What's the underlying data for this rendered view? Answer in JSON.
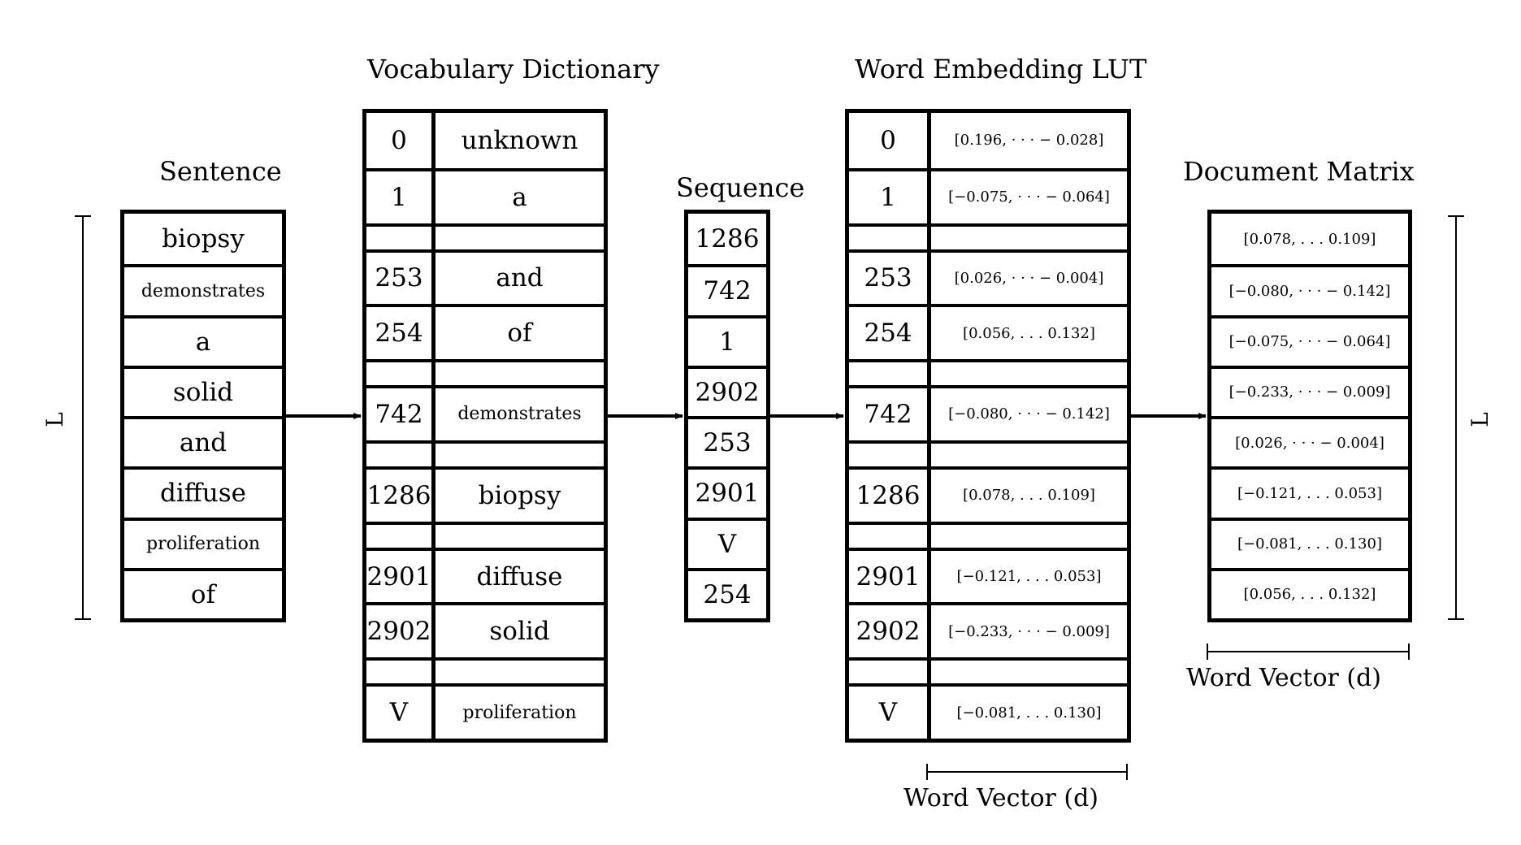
{
  "titles": {
    "sentence": "Sentence",
    "vocab": "Vocabulary Dictionary",
    "sequence": "Sequence",
    "lut": "Word Embedding LUT",
    "document": "Document Matrix"
  },
  "sentence_words": [
    "biopsy",
    "demonstrates",
    "a",
    "solid",
    "and",
    "diffuse",
    "proliferation",
    "of"
  ],
  "vocab": [
    {
      "id": "0",
      "word": "unknown"
    },
    {
      "id": "1",
      "word": "a"
    },
    {
      "id": "",
      "word": ""
    },
    {
      "id": "253",
      "word": "and"
    },
    {
      "id": "254",
      "word": "of"
    },
    {
      "id": "",
      "word": ""
    },
    {
      "id": "742",
      "word": "demonstrates"
    },
    {
      "id": "",
      "word": ""
    },
    {
      "id": "1286",
      "word": "biopsy"
    },
    {
      "id": "",
      "word": ""
    },
    {
      "id": "2901",
      "word": "diffuse"
    },
    {
      "id": "2902",
      "word": "solid"
    },
    {
      "id": "",
      "word": ""
    },
    {
      "id": "V",
      "word": "proliferation"
    }
  ],
  "sequence": [
    "1286",
    "742",
    "1",
    "2902",
    "253",
    "2901",
    "V",
    "254"
  ],
  "lut": [
    {
      "id": "0",
      "vec": "[0.196, · · · − 0.028]"
    },
    {
      "id": "1",
      "vec": "[−0.075, · · · − 0.064]"
    },
    {
      "id": "",
      "vec": ""
    },
    {
      "id": "253",
      "vec": "[0.026, · · · − 0.004]"
    },
    {
      "id": "254",
      "vec": "[0.056, . . . 0.132]"
    },
    {
      "id": "",
      "vec": ""
    },
    {
      "id": "742",
      "vec": "[−0.080, · · · − 0.142]"
    },
    {
      "id": "",
      "vec": ""
    },
    {
      "id": "1286",
      "vec": "[0.078, . . . 0.109]"
    },
    {
      "id": "",
      "vec": ""
    },
    {
      "id": "2901",
      "vec": "[−0.121, . . . 0.053]"
    },
    {
      "id": "2902",
      "vec": "[−0.233, · · · − 0.009]"
    },
    {
      "id": "",
      "vec": ""
    },
    {
      "id": "V",
      "vec": "[−0.081, . . . 0.130]"
    }
  ],
  "document_rows": [
    "[0.078, . . . 0.109]",
    "[−0.080, · · · − 0.142]",
    "[−0.075, · · · − 0.064]",
    "[−0.233, · · · − 0.009]",
    "[0.026, · · · − 0.004]",
    "[−0.121, . . . 0.053]",
    "[−0.081, . . . 0.130]",
    "[0.056, . . . 0.132]"
  ],
  "labels": {
    "length_left": "L",
    "length_right": "L",
    "word_vector_lut": "Word Vector (d)",
    "word_vector_doc": "Word Vector (d)"
  }
}
